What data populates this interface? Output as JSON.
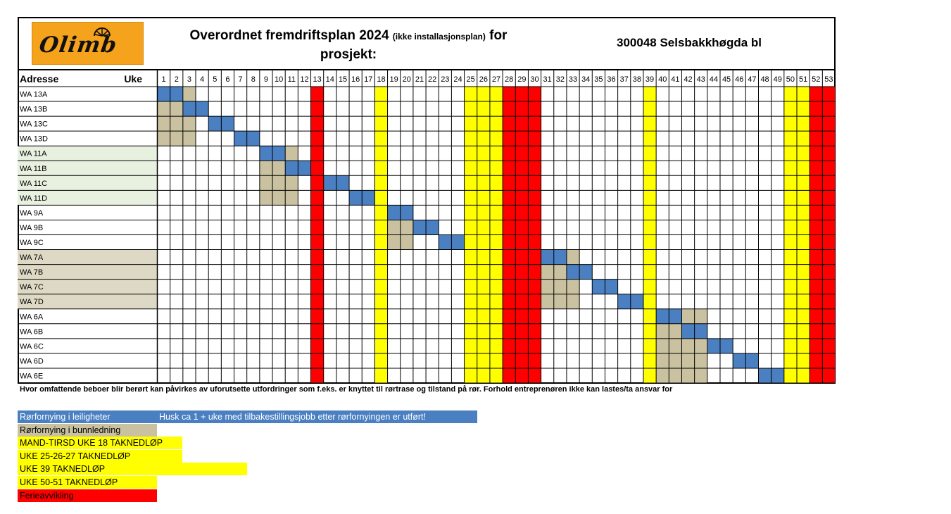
{
  "header": {
    "logo_text": "Olimb",
    "title_main": "Overordnet fremdriftsplan 2024",
    "title_small": "(ikke installasjonsplan)",
    "title_tail": "for",
    "title_line2": "prosjekt:",
    "project": "300048 Selsbakkhøgda bl"
  },
  "table": {
    "col_address": "Adresse",
    "col_week": "Uke",
    "weeks": [
      1,
      2,
      3,
      4,
      5,
      6,
      7,
      8,
      9,
      10,
      11,
      12,
      13,
      14,
      15,
      16,
      17,
      18,
      19,
      20,
      21,
      22,
      23,
      24,
      25,
      26,
      27,
      28,
      29,
      30,
      31,
      32,
      33,
      34,
      35,
      36,
      37,
      38,
      39,
      40,
      41,
      42,
      43,
      44,
      45,
      46,
      47,
      48,
      49,
      50,
      51,
      52,
      53
    ],
    "rows": [
      {
        "address": "WA 13A",
        "band": "white",
        "leilighet": [
          1,
          2
        ],
        "bunn": [
          3
        ]
      },
      {
        "address": "WA 13B",
        "band": "white",
        "leilighet": [
          3,
          4
        ],
        "bunn": [
          1,
          2
        ]
      },
      {
        "address": "WA 13C",
        "band": "white",
        "leilighet": [
          5,
          6
        ],
        "bunn": [
          1,
          2,
          3
        ]
      },
      {
        "address": "WA 13D",
        "band": "white",
        "leilighet": [
          7,
          8
        ],
        "bunn": [
          1,
          2,
          3
        ]
      },
      {
        "address": "WA 11A",
        "band": "green",
        "leilighet": [
          9,
          10
        ],
        "bunn": [
          11
        ]
      },
      {
        "address": "WA 11B",
        "band": "green",
        "leilighet": [
          11,
          12
        ],
        "bunn": [
          9,
          10
        ]
      },
      {
        "address": "WA 11C",
        "band": "green",
        "leilighet": [
          14,
          15
        ],
        "bunn": [
          9,
          10,
          11
        ]
      },
      {
        "address": "WA 11D",
        "band": "green",
        "leilighet": [
          16,
          17
        ],
        "bunn": [
          9,
          10,
          11
        ]
      },
      {
        "address": "WA 9A",
        "band": "white",
        "leilighet": [
          19,
          20
        ],
        "bunn": []
      },
      {
        "address": "WA 9B",
        "band": "white",
        "leilighet": [
          21,
          22
        ],
        "bunn": [
          19,
          20
        ]
      },
      {
        "address": "WA 9C",
        "band": "white",
        "leilighet": [
          23,
          24
        ],
        "bunn": [
          19,
          20
        ]
      },
      {
        "address": "WA 7A",
        "band": "tan",
        "leilighet": [
          31,
          32
        ],
        "bunn": [
          33
        ]
      },
      {
        "address": "WA 7B",
        "band": "tan",
        "leilighet": [
          33,
          34
        ],
        "bunn": [
          31,
          32
        ]
      },
      {
        "address": "WA 7C",
        "band": "tan",
        "leilighet": [
          35,
          36
        ],
        "bunn": [
          31,
          32,
          33
        ]
      },
      {
        "address": "WA 7D",
        "band": "tan",
        "leilighet": [
          37,
          38
        ],
        "bunn": [
          31,
          32,
          33
        ]
      },
      {
        "address": "WA 6A",
        "band": "white",
        "leilighet": [
          40,
          41
        ],
        "bunn": [
          42,
          43
        ]
      },
      {
        "address": "WA 6B",
        "band": "white",
        "leilighet": [
          42,
          43
        ],
        "bunn": [
          40,
          41
        ]
      },
      {
        "address": "WA 6C",
        "band": "white",
        "leilighet": [
          44,
          45
        ],
        "bunn": [
          40,
          41,
          42,
          43
        ]
      },
      {
        "address": "WA 6D",
        "band": "white",
        "leilighet": [
          46,
          47
        ],
        "bunn": [
          40,
          41,
          42,
          43
        ]
      },
      {
        "address": "WA 6E",
        "band": "white",
        "leilighet": [
          48,
          49
        ],
        "bunn": [
          40,
          41,
          42,
          43
        ]
      }
    ],
    "yellow_weeks": [
      18,
      25,
      26,
      27,
      39,
      50,
      51
    ],
    "red_weeks": [
      13,
      28,
      29,
      30,
      52,
      53
    ]
  },
  "footnote": "Hvor omfattende beboer blir berørt kan påvirkes av uforutsette utfordringer som f.eks. er knyttet til rørtrase og tilstand på rør. Forhold entreprenøren ikke kan lastes/ta ansvar for",
  "legend": [
    {
      "label": "Rørfornying i leiligheter",
      "note": "Husk ca 1 + uke med tilbakestillingsjobb etter rørfornyingen er utført!",
      "color": "#4a7fc1",
      "text_color": "#ffffff"
    },
    {
      "label": "Rørfornying i bunnledning",
      "color": "#c9c1a0",
      "text_color": "#000000"
    },
    {
      "label": "MAND-TIRSD UKE 18 TAKNEDLØP",
      "color": "#ffff00",
      "text_color": "#000000"
    },
    {
      "label": "UKE 25-26-27 TAKNEDLØP",
      "color": "#ffff00",
      "text_color": "#000000"
    },
    {
      "label": "UKE 39 TAKNEDLØP",
      "color": "#ffff00",
      "text_color": "#000000"
    },
    {
      "label": "UKE 50-51 TAKNEDLØP",
      "color": "#ffff00",
      "text_color": "#000000"
    },
    {
      "label": "Ferieavvikling",
      "color": "#ff0000",
      "text_color": "#000000"
    }
  ],
  "colors": {
    "leilighet": "#4a7fc1",
    "bunn": "#c9c1a0",
    "taknedlop": "#ffff00",
    "ferie": "#ff0000",
    "band_green": "#e8f0df",
    "band_tan": "#ddd9c4",
    "logo": "#f5a21c"
  }
}
